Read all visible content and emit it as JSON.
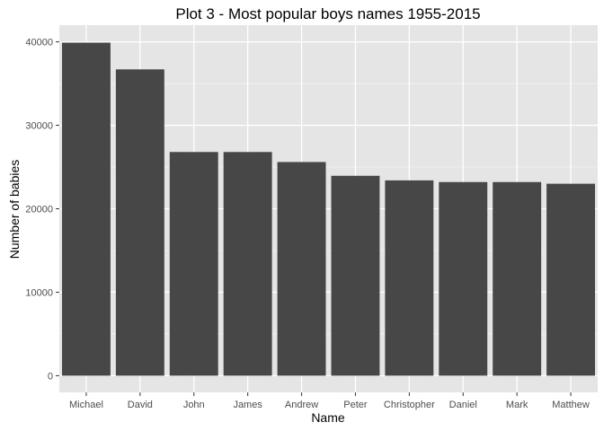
{
  "chart_data": {
    "type": "bar",
    "title": "Plot 3 - Most popular boys names 1955-2015",
    "xlabel": "Name",
    "ylabel": "Number of babies",
    "categories": [
      "Michael",
      "David",
      "John",
      "James",
      "Andrew",
      "Peter",
      "Christopher",
      "Daniel",
      "Mark",
      "Matthew"
    ],
    "values": [
      39900,
      36700,
      26800,
      26800,
      25600,
      23950,
      23400,
      23200,
      23200,
      23000
    ],
    "ylim": [
      -2000,
      42000
    ],
    "yticks": [
      0,
      10000,
      20000,
      30000,
      40000
    ],
    "ytick_labels": [
      "0",
      "10000",
      "20000",
      "30000",
      "40000"
    ],
    "grid": true,
    "colors": {
      "bar": "#474747",
      "panel": "#e5e5e5",
      "grid_major": "#ffffff",
      "grid_minor": "#f2f2f2"
    }
  }
}
